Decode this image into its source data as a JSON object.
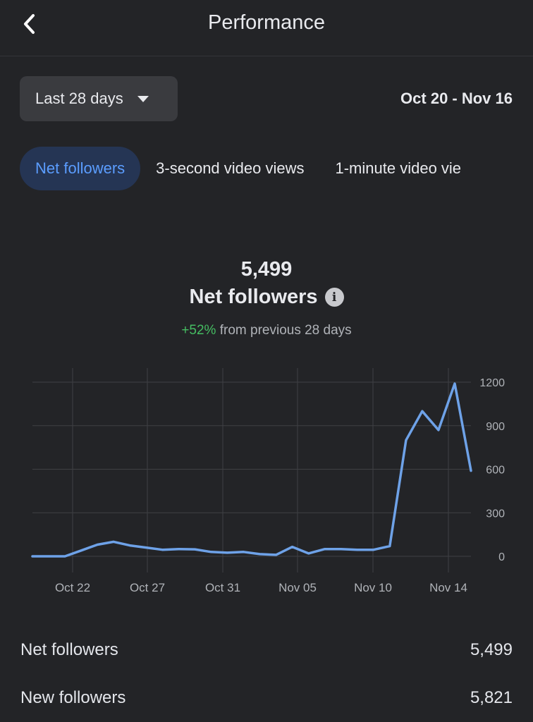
{
  "header": {
    "title": "Performance",
    "back_icon": "chevron-left-icon"
  },
  "range": {
    "label": "Last 28 days",
    "caret_icon": "caret-down-icon",
    "dates": "Oct 20 - Nov 16"
  },
  "tabs": [
    {
      "label": "Net followers",
      "active": true
    },
    {
      "label": "3-second video views",
      "active": false
    },
    {
      "label": "1-minute video vie",
      "active": false
    }
  ],
  "summary": {
    "value": "5,499",
    "label": "Net followers",
    "info_icon": "info-icon",
    "change_pct": "+52%",
    "change_text": "from previous 28 days"
  },
  "colors": {
    "line": "#6ea2e8",
    "grid": "#3f4044",
    "positive": "#45bd62",
    "accent": "#5b9dff"
  },
  "chart_data": {
    "type": "line",
    "x_labels": [
      "Oct 22",
      "Oct 27",
      "Oct 31",
      "Nov 05",
      "Nov 10",
      "Nov 14"
    ],
    "y_ticks": [
      "1200",
      "900",
      "600",
      "300",
      "0"
    ],
    "ylim": [
      0,
      1200
    ],
    "grid": true,
    "series": [
      {
        "values": [
          0,
          0,
          0,
          40,
          80,
          100,
          75,
          60,
          45,
          50,
          48,
          30,
          25,
          30,
          15,
          10,
          65,
          20,
          50,
          50,
          45,
          45,
          70,
          800,
          1000,
          870,
          1190,
          590
        ]
      }
    ]
  },
  "stats": [
    {
      "label": "Net followers",
      "value": "5,499"
    },
    {
      "label": "New followers",
      "value": "5,821"
    }
  ]
}
